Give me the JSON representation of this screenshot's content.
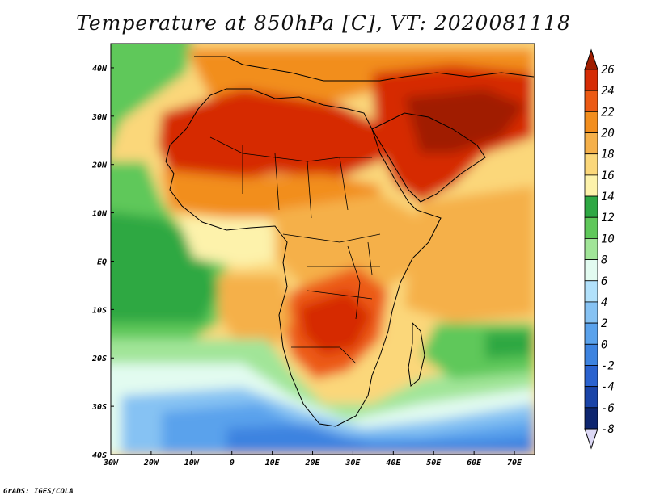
{
  "title": "Temperature at 850hPa [C], VT: 2020081118",
  "credit": "GrADS: IGES/COLA",
  "map": {
    "lon_range": [
      -30,
      75
    ],
    "lat_range": [
      -40,
      45
    ],
    "x_ticks": [
      {
        "lon": -30,
        "label": "30W"
      },
      {
        "lon": -20,
        "label": "20W"
      },
      {
        "lon": -10,
        "label": "10W"
      },
      {
        "lon": 0,
        "label": "0"
      },
      {
        "lon": 10,
        "label": "10E"
      },
      {
        "lon": 20,
        "label": "20E"
      },
      {
        "lon": 30,
        "label": "30E"
      },
      {
        "lon": 40,
        "label": "40E"
      },
      {
        "lon": 50,
        "label": "50E"
      },
      {
        "lon": 60,
        "label": "60E"
      },
      {
        "lon": 70,
        "label": "70E"
      }
    ],
    "y_ticks": [
      {
        "lat": 40,
        "label": "40N"
      },
      {
        "lat": 30,
        "label": "30N"
      },
      {
        "lat": 20,
        "label": "20N"
      },
      {
        "lat": 10,
        "label": "10N"
      },
      {
        "lat": 0,
        "label": "EQ"
      },
      {
        "lat": -10,
        "label": "10S"
      },
      {
        "lat": -20,
        "label": "20S"
      },
      {
        "lat": -30,
        "label": "30S"
      },
      {
        "lat": -40,
        "label": "40S"
      }
    ]
  },
  "colorbar": {
    "labels": [
      "26",
      "24",
      "22",
      "20",
      "18",
      "16",
      "14",
      "12",
      "10",
      "8",
      "6",
      "4",
      "2",
      "0",
      "-2",
      "-4",
      "-6",
      "-8"
    ],
    "colors": [
      "#a01d00",
      "#d62c05",
      "#ec5a14",
      "#f28e1e",
      "#f5b04a",
      "#fbd77a",
      "#fdf2ab",
      "#2ea843",
      "#5fc85a",
      "#a1e598",
      "#e2fbf0",
      "#b2e1fb",
      "#86c2f3",
      "#5aa2ec",
      "#3d83e0",
      "#2a62cf",
      "#1a44a8",
      "#0e2670",
      "#dcd8f5"
    ]
  }
}
